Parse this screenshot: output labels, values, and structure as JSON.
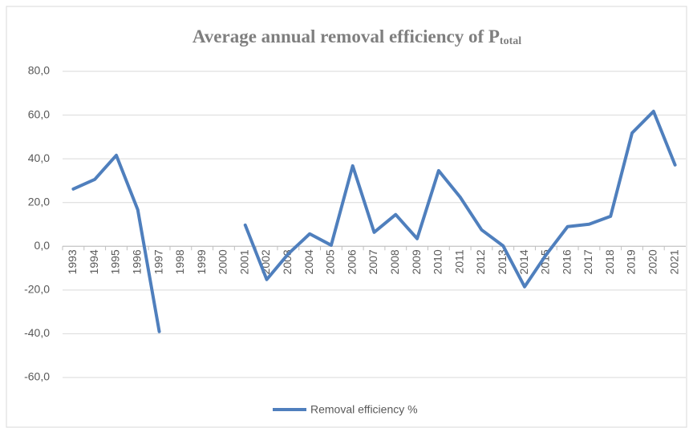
{
  "chart_data": {
    "type": "line",
    "title": "Average annual removal efficiency of P",
    "title_subscript": "total",
    "categories": [
      "1993",
      "1994",
      "1995",
      "1996",
      "1997",
      "1998",
      "1999",
      "2000",
      "2001",
      "2002",
      "2003",
      "2004",
      "2005",
      "2006",
      "2007",
      "2008",
      "2009",
      "2010",
      "2011",
      "2012",
      "2013",
      "2014",
      "2015",
      "2016",
      "2017",
      "2018",
      "2019",
      "2020",
      "2021"
    ],
    "series": [
      {
        "name": "Removal efficiency  %",
        "color": "#4f7fbd",
        "values": [
          26.2,
          30.6,
          41.6,
          16.7,
          -39.0,
          null,
          null,
          null,
          9.7,
          -15.2,
          -3.5,
          5.7,
          0.5,
          36.8,
          6.4,
          14.5,
          3.5,
          34.6,
          22.5,
          7.5,
          0.2,
          -18.5,
          -3.9,
          9.0,
          10.1,
          13.7,
          51.8,
          61.7,
          37.2
        ]
      }
    ],
    "ylim": [
      -60,
      80
    ],
    "yticks": [
      {
        "value": -60,
        "label": "-60,0"
      },
      {
        "value": -40,
        "label": "-40,0"
      },
      {
        "value": -20,
        "label": "-20,0"
      },
      {
        "value": 0,
        "label": "0,0"
      },
      {
        "value": 20,
        "label": "20,0"
      },
      {
        "value": 40,
        "label": "40,0"
      },
      {
        "value": 60,
        "label": "60,0"
      },
      {
        "value": 80,
        "label": "80,0"
      }
    ],
    "grid": true,
    "legend": "bottom"
  }
}
